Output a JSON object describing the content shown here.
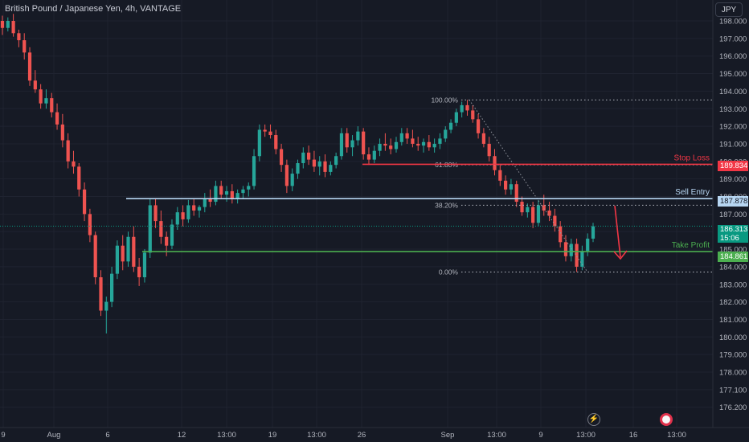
{
  "header": {
    "title": "British Pound / Japanese Yen, 4h, VANTAGE",
    "currency": "JPY"
  },
  "icons": {
    "lightning": "lightning-icon",
    "record": "record-icon"
  },
  "colors": {
    "background": "#161a25",
    "up": "#26a69a",
    "down": "#ef5350",
    "stop_loss": "#f23645",
    "sell_entry": "#b7d6f2",
    "take_profit": "#4caf50",
    "current": "#089981"
  },
  "chart_data": {
    "type": "candlestick",
    "ylim": [
      176.2,
      198.6
    ],
    "y_ticks": [
      "198.000",
      "197.000",
      "196.000",
      "195.000",
      "194.000",
      "193.000",
      "192.000",
      "191.000",
      "190.000",
      "189.000",
      "188.000",
      "187.000",
      "186.000",
      "185.000",
      "184.000",
      "183.000",
      "182.000",
      "181.000",
      "180.000",
      "179.000",
      "178.000",
      "177.100",
      "176.200"
    ],
    "x_ticks": [
      "9",
      "Aug",
      "6",
      "12",
      "13:00",
      "19",
      "13:00",
      "26",
      "Sep",
      "13:00",
      "9",
      "13:00",
      "16",
      "13:00"
    ],
    "levels": [
      {
        "name": "Stop Loss",
        "price": 189.834,
        "label": "189.834"
      },
      {
        "name": "Sell Entry",
        "price": 187.878,
        "label": "187.878"
      },
      {
        "name": "Take Profit",
        "price": 184.861,
        "label": "184.861"
      }
    ],
    "current_price": {
      "label": "186.313",
      "countdown": "15:06",
      "price": 186.313
    },
    "fibonacci": {
      "high": 193.5,
      "low": 183.7,
      "levels": [
        {
          "label": "100.00%",
          "price": 193.5
        },
        {
          "label": "61.80%",
          "price": 189.8
        },
        {
          "label": "38.20%",
          "price": 187.5
        },
        {
          "label": "0.00%",
          "price": 183.7
        }
      ]
    },
    "candles": [
      [
        198.0,
        198.3,
        197.2,
        197.6
      ],
      [
        197.6,
        198.2,
        197.4,
        198.0
      ],
      [
        198.0,
        198.4,
        197.1,
        197.3
      ],
      [
        197.3,
        197.5,
        196.5,
        196.9
      ],
      [
        196.9,
        197.3,
        195.8,
        196.2
      ],
      [
        196.2,
        196.5,
        194.3,
        194.6
      ],
      [
        194.6,
        195.2,
        193.9,
        194.1
      ],
      [
        194.1,
        194.4,
        193.0,
        193.3
      ],
      [
        193.3,
        194.1,
        193.0,
        193.6
      ],
      [
        193.6,
        193.9,
        192.5,
        192.8
      ],
      [
        192.8,
        193.3,
        191.8,
        192.1
      ],
      [
        192.1,
        192.7,
        190.8,
        191.2
      ],
      [
        191.2,
        191.6,
        189.6,
        190.0
      ],
      [
        190.0,
        190.6,
        189.3,
        189.7
      ],
      [
        189.7,
        189.9,
        188.0,
        188.4
      ],
      [
        188.4,
        188.8,
        186.6,
        187.0
      ],
      [
        187.0,
        187.3,
        185.4,
        185.8
      ],
      [
        185.8,
        186.0,
        183.0,
        183.4
      ],
      [
        183.4,
        183.8,
        181.2,
        181.5
      ],
      [
        181.5,
        182.3,
        180.2,
        182.0
      ],
      [
        182.0,
        184.0,
        181.7,
        183.6
      ],
      [
        183.6,
        185.5,
        183.3,
        185.2
      ],
      [
        185.2,
        185.8,
        183.8,
        184.3
      ],
      [
        184.3,
        186.0,
        184.0,
        185.7
      ],
      [
        185.7,
        186.3,
        183.7,
        184.0
      ],
      [
        184.0,
        184.5,
        182.9,
        183.4
      ],
      [
        183.4,
        185.0,
        183.1,
        184.8
      ],
      [
        184.8,
        187.9,
        184.5,
        187.5
      ],
      [
        187.5,
        187.9,
        186.2,
        186.6
      ],
      [
        186.6,
        187.2,
        185.3,
        185.7
      ],
      [
        185.7,
        186.0,
        184.6,
        185.2
      ],
      [
        185.2,
        186.7,
        185.0,
        186.4
      ],
      [
        186.4,
        187.4,
        186.1,
        187.1
      ],
      [
        187.1,
        187.5,
        186.3,
        186.7
      ],
      [
        186.7,
        187.8,
        186.5,
        187.5
      ],
      [
        187.5,
        187.9,
        186.9,
        187.2
      ],
      [
        187.2,
        187.5,
        186.8,
        187.4
      ],
      [
        187.4,
        188.2,
        187.1,
        187.9
      ],
      [
        187.9,
        188.4,
        187.4,
        187.7
      ],
      [
        187.7,
        188.9,
        187.5,
        188.6
      ],
      [
        188.6,
        188.9,
        187.9,
        188.1
      ],
      [
        188.1,
        188.6,
        187.7,
        188.3
      ],
      [
        188.3,
        188.7,
        187.6,
        187.9
      ],
      [
        187.9,
        188.4,
        187.6,
        188.2
      ],
      [
        188.2,
        188.6,
        187.9,
        188.4
      ],
      [
        188.4,
        188.8,
        188.0,
        188.6
      ],
      [
        188.6,
        190.7,
        188.4,
        190.3
      ],
      [
        190.3,
        192.1,
        190.0,
        191.8
      ],
      [
        191.8,
        192.1,
        191.4,
        191.7
      ],
      [
        191.7,
        192.1,
        191.3,
        191.5
      ],
      [
        191.5,
        191.8,
        190.4,
        190.7
      ],
      [
        190.7,
        191.0,
        189.4,
        189.8
      ],
      [
        189.8,
        190.1,
        188.2,
        188.6
      ],
      [
        188.6,
        189.6,
        188.3,
        189.3
      ],
      [
        189.3,
        190.1,
        189.0,
        189.9
      ],
      [
        189.9,
        190.8,
        189.6,
        190.5
      ],
      [
        190.5,
        190.9,
        189.8,
        190.1
      ],
      [
        190.1,
        190.6,
        189.4,
        189.7
      ],
      [
        189.7,
        190.3,
        189.2,
        190.0
      ],
      [
        190.0,
        190.4,
        189.1,
        189.4
      ],
      [
        189.4,
        190.0,
        189.2,
        189.8
      ],
      [
        189.8,
        190.5,
        189.6,
        190.3
      ],
      [
        190.3,
        191.9,
        190.1,
        191.6
      ],
      [
        191.6,
        191.9,
        190.5,
        190.8
      ],
      [
        190.8,
        191.5,
        190.3,
        191.2
      ],
      [
        191.2,
        192.0,
        190.9,
        191.7
      ],
      [
        191.7,
        191.9,
        190.1,
        190.4
      ],
      [
        190.4,
        190.8,
        189.8,
        190.1
      ],
      [
        190.1,
        190.9,
        189.9,
        190.6
      ],
      [
        190.6,
        191.3,
        190.3,
        191.0
      ],
      [
        191.0,
        191.6,
        190.6,
        190.9
      ],
      [
        190.9,
        191.3,
        190.4,
        190.7
      ],
      [
        190.7,
        191.4,
        190.5,
        191.1
      ],
      [
        191.1,
        191.9,
        190.9,
        191.6
      ],
      [
        191.6,
        191.9,
        191.0,
        191.3
      ],
      [
        191.3,
        191.8,
        190.8,
        191.0
      ],
      [
        191.0,
        191.4,
        190.6,
        190.9
      ],
      [
        190.9,
        191.3,
        190.5,
        191.1
      ],
      [
        191.1,
        191.5,
        190.6,
        190.8
      ],
      [
        190.8,
        191.3,
        190.5,
        191.0
      ],
      [
        191.0,
        191.6,
        190.7,
        191.3
      ],
      [
        191.3,
        192.0,
        191.1,
        191.8
      ],
      [
        191.8,
        192.4,
        191.6,
        192.2
      ],
      [
        192.2,
        193.0,
        192.0,
        192.8
      ],
      [
        192.8,
        193.4,
        192.5,
        193.2
      ],
      [
        193.2,
        193.5,
        192.6,
        192.9
      ],
      [
        192.9,
        193.2,
        192.2,
        192.4
      ],
      [
        192.4,
        192.7,
        191.3,
        191.6
      ],
      [
        191.6,
        191.9,
        190.8,
        191.0
      ],
      [
        191.0,
        191.4,
        190.0,
        190.3
      ],
      [
        190.3,
        190.7,
        189.2,
        189.5
      ],
      [
        189.5,
        189.8,
        188.6,
        188.9
      ],
      [
        188.9,
        189.2,
        188.1,
        188.4
      ],
      [
        188.4,
        189.0,
        188.1,
        188.7
      ],
      [
        188.7,
        188.9,
        187.4,
        187.7
      ],
      [
        187.7,
        188.0,
        186.9,
        187.1
      ],
      [
        187.1,
        187.6,
        186.8,
        187.4
      ],
      [
        187.4,
        187.7,
        186.2,
        186.5
      ],
      [
        186.5,
        187.8,
        186.3,
        187.5
      ],
      [
        187.5,
        188.1,
        186.9,
        187.2
      ],
      [
        187.2,
        187.7,
        186.6,
        186.9
      ],
      [
        186.9,
        187.3,
        186.0,
        186.3
      ],
      [
        186.3,
        186.6,
        185.1,
        185.4
      ],
      [
        185.4,
        185.8,
        184.3,
        184.6
      ],
      [
        184.6,
        185.6,
        184.3,
        185.3
      ],
      [
        185.3,
        185.6,
        183.7,
        184.0
      ],
      [
        184.0,
        185.2,
        183.8,
        184.9
      ],
      [
        184.9,
        185.9,
        184.6,
        185.6
      ],
      [
        185.6,
        186.5,
        185.4,
        186.3
      ]
    ]
  }
}
